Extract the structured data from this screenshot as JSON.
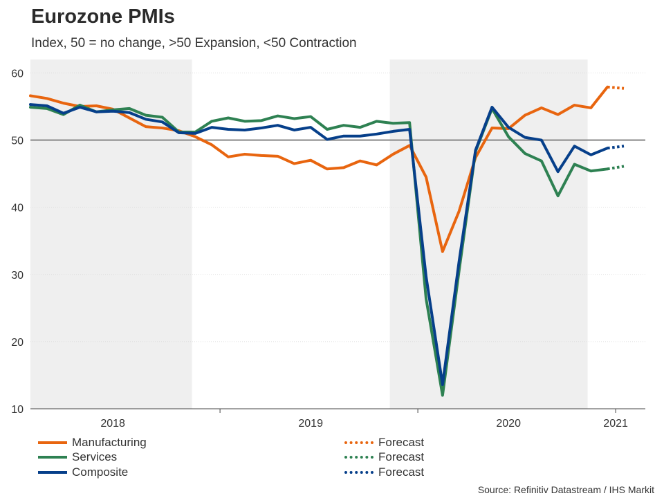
{
  "title": "Eurozone PMIs",
  "subtitle": "Index, 50 = no change, >50 Expansion, <50 Contraction",
  "source": "Source: Refinitiv Datastream / IHS Markit",
  "colors": {
    "manufacturing": "#e8650f",
    "services": "#2e8152",
    "composite": "#063f8a",
    "reference_line": "#8c8c8c",
    "shading": "#efefef",
    "grid": "#d6d6d6"
  },
  "legend": [
    {
      "label": "Manufacturing",
      "series": "manufacturing",
      "style": "solid"
    },
    {
      "label": "Services",
      "series": "services",
      "style": "solid"
    },
    {
      "label": "Composite",
      "series": "composite",
      "style": "solid"
    },
    {
      "label": "Forecast",
      "series": "manufacturing",
      "style": "dotted"
    },
    {
      "label": "Forecast",
      "series": "services",
      "style": "dotted"
    },
    {
      "label": "Forecast",
      "series": "composite",
      "style": "dotted"
    }
  ],
  "chart_data": {
    "type": "line",
    "title": "Eurozone PMIs",
    "ylabel": "Index",
    "xlabel": "",
    "ylim": [
      10,
      62
    ],
    "xlim": [
      0,
      37.3
    ],
    "y_ticks": [
      10,
      20,
      30,
      40,
      50,
      60
    ],
    "x_tick_labels": [
      {
        "label": "2018",
        "pos": 5
      },
      {
        "label": "2019",
        "pos": 17
      },
      {
        "label": "2020",
        "pos": 29
      },
      {
        "label": "2021",
        "pos": 35.5
      }
    ],
    "year_boundaries": [
      11.5,
      23.5,
      35.5
    ],
    "shaded_ranges": [
      [
        0,
        9.8
      ],
      [
        21.8,
        33.8
      ]
    ],
    "reference_line": 50,
    "x": [
      0,
      1,
      2,
      3,
      4,
      5,
      6,
      7,
      8,
      9,
      10,
      11,
      12,
      13,
      14,
      15,
      16,
      17,
      18,
      19,
      20,
      21,
      22,
      23,
      24,
      25,
      26,
      27,
      28,
      29,
      30,
      31,
      32,
      33,
      34,
      35
    ],
    "series": [
      {
        "name": "Manufacturing",
        "key": "manufacturing",
        "values": [
          56.6,
          56.2,
          55.5,
          55.0,
          55.1,
          54.6,
          53.3,
          52.0,
          51.8,
          51.4,
          50.5,
          49.3,
          47.5,
          47.9,
          47.7,
          47.6,
          46.5,
          47.0,
          45.7,
          45.9,
          46.9,
          46.3,
          47.9,
          49.2,
          44.5,
          33.4,
          39.4,
          47.4,
          51.8,
          51.7,
          53.7,
          54.8,
          53.8,
          55.2,
          54.8,
          57.9
        ],
        "forecast": {
          "x": [
            35,
            36
          ],
          "values": [
            57.9,
            57.7
          ]
        }
      },
      {
        "name": "Services",
        "key": "services",
        "values": [
          54.9,
          54.7,
          53.8,
          55.2,
          54.2,
          54.5,
          54.7,
          53.7,
          53.4,
          51.2,
          51.2,
          52.8,
          53.3,
          52.8,
          52.9,
          53.6,
          53.2,
          53.5,
          51.6,
          52.2,
          51.9,
          52.8,
          52.5,
          52.6,
          26.4,
          12.0,
          30.5,
          48.3,
          54.7,
          50.5,
          48.0,
          46.9,
          41.7,
          46.4,
          45.4,
          45.7
        ],
        "forecast": {
          "x": [
            35,
            36
          ],
          "values": [
            45.7,
            46.1
          ]
        }
      },
      {
        "name": "Composite",
        "key": "composite",
        "values": [
          55.3,
          55.1,
          54.0,
          54.9,
          54.2,
          54.3,
          54.1,
          53.1,
          52.7,
          51.1,
          51.0,
          51.9,
          51.6,
          51.5,
          51.8,
          52.2,
          51.5,
          51.9,
          50.1,
          50.6,
          50.6,
          50.9,
          51.3,
          51.6,
          29.7,
          13.6,
          31.9,
          48.5,
          54.9,
          51.9,
          50.4,
          50.0,
          45.3,
          49.1,
          47.8,
          48.8
        ],
        "forecast": {
          "x": [
            35,
            36
          ],
          "values": [
            48.8,
            49.1
          ]
        }
      }
    ]
  }
}
